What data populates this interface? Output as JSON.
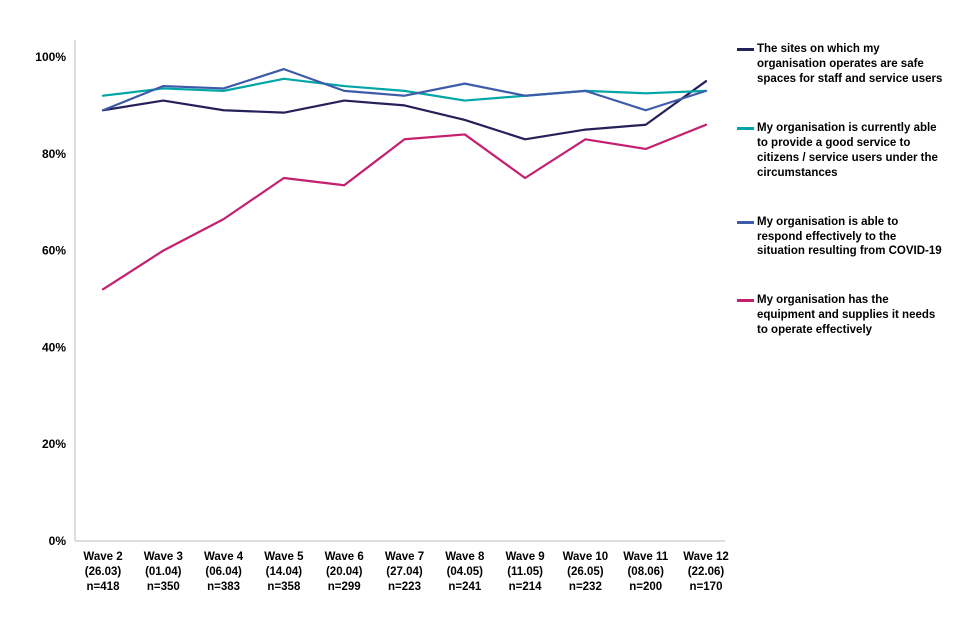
{
  "chart_data": {
    "type": "line",
    "title": "",
    "xlabel": "",
    "ylabel": "",
    "ylim": [
      0,
      100
    ],
    "grid": false,
    "legend_position": "right",
    "yticks": [
      "0%",
      "20%",
      "40%",
      "60%",
      "80%",
      "100%"
    ],
    "categories": [
      {
        "wave": "Wave 2",
        "date": "(26.03)",
        "n": "n=418"
      },
      {
        "wave": "Wave 3",
        "date": "(01.04)",
        "n": "n=350"
      },
      {
        "wave": "Wave 4",
        "date": "(06.04)",
        "n": "n=383"
      },
      {
        "wave": "Wave 5",
        "date": "(14.04)",
        "n": "n=358"
      },
      {
        "wave": "Wave 6",
        "date": "(20.04)",
        "n": "n=299"
      },
      {
        "wave": "Wave 7",
        "date": "(27.04)",
        "n": "n=223"
      },
      {
        "wave": "Wave 8",
        "date": "(04.05)",
        "n": "n=241"
      },
      {
        "wave": "Wave 9",
        "date": "(11.05)",
        "n": "n=214"
      },
      {
        "wave": "Wave 10",
        "date": "(26.05)",
        "n": "n=232"
      },
      {
        "wave": "Wave 11",
        "date": "(08.06)",
        "n": "n=200"
      },
      {
        "wave": "Wave 12",
        "date": "(22.06)",
        "n": "n=170"
      }
    ],
    "series": [
      {
        "name": "The sites on which my organisation operates are safe spaces for staff and service users",
        "color": "#252159",
        "values": [
          89,
          91,
          89,
          88.5,
          91,
          90,
          87,
          83,
          85,
          86,
          95
        ]
      },
      {
        "name": "My organisation is currently able to provide a good service to citizens / service users under the circumstances",
        "color": "#00A6A6",
        "values": [
          92,
          93.5,
          93,
          95.5,
          94,
          93,
          91,
          92,
          93,
          92.5,
          93
        ]
      },
      {
        "name": "My organisation is able to respond effectively to the situation resulting from COVID-19",
        "color": "#3E5BA9",
        "values": [
          89,
          94,
          93.5,
          97.5,
          93,
          92,
          94.5,
          92,
          93,
          89,
          93
        ]
      },
      {
        "name": "My organisation has the equipment and supplies it needs to operate effectively",
        "color": "#C51F6F",
        "values": [
          52,
          60,
          66.5,
          75,
          73.5,
          83,
          84,
          75,
          83,
          81,
          86
        ]
      }
    ]
  }
}
